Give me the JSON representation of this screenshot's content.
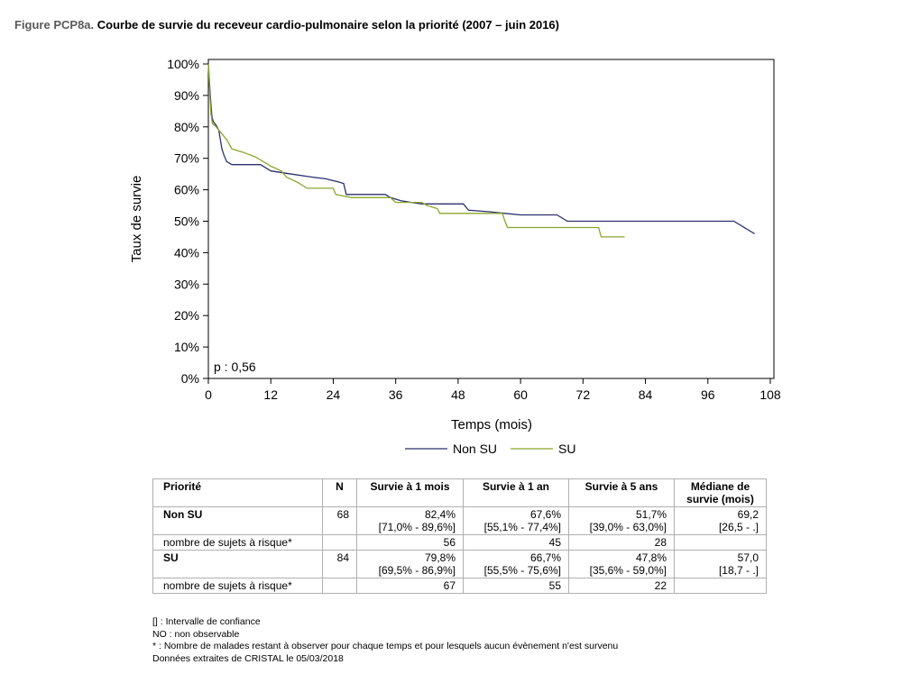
{
  "figure": {
    "label": "Figure PCP8a.",
    "title": "Courbe de survie du receveur cardio-pulmonaire selon la priorité (2007 – juin 2016)"
  },
  "chart_data": {
    "type": "line",
    "xlabel": "Temps (mois)",
    "ylabel": "Taux de survie",
    "xlim": [
      0,
      108
    ],
    "ylim": [
      0,
      100
    ],
    "x_ticks": [
      "0",
      "12",
      "24",
      "36",
      "48",
      "60",
      "72",
      "84",
      "96",
      "108"
    ],
    "y_ticks": [
      "0%",
      "10%",
      "20%",
      "30%",
      "40%",
      "50%",
      "60%",
      "70%",
      "80%",
      "90%",
      "100%"
    ],
    "annotation": "p : 0,56",
    "legend_position": "bottom",
    "series": [
      {
        "name": "Non SU",
        "color": "#2b2f6e",
        "points": [
          [
            0,
            100
          ],
          [
            0.15,
            96
          ],
          [
            0.3,
            92
          ],
          [
            0.5,
            87
          ],
          [
            0.7,
            83
          ],
          [
            1,
            81.5
          ],
          [
            1.5,
            80.5
          ],
          [
            2,
            79
          ],
          [
            2.3,
            76
          ],
          [
            2.6,
            73
          ],
          [
            3,
            71
          ],
          [
            3.5,
            69
          ],
          [
            4.5,
            68
          ],
          [
            10,
            68
          ],
          [
            11,
            67
          ],
          [
            12,
            66
          ],
          [
            16,
            65
          ],
          [
            20,
            64
          ],
          [
            22.5,
            63.5
          ],
          [
            25,
            62.5
          ],
          [
            26,
            62
          ],
          [
            26.5,
            58.5
          ],
          [
            34,
            58.5
          ],
          [
            35,
            57.5
          ],
          [
            37,
            56.5
          ],
          [
            39,
            56
          ],
          [
            41,
            55.5
          ],
          [
            43,
            55.5
          ],
          [
            49,
            55.5
          ],
          [
            50,
            53.5
          ],
          [
            54,
            53
          ],
          [
            57,
            52.5
          ],
          [
            60,
            52
          ],
          [
            67,
            52
          ],
          [
            69,
            50
          ],
          [
            101,
            50
          ],
          [
            105,
            46
          ]
        ]
      },
      {
        "name": "SU",
        "color": "#8aa62c",
        "points": [
          [
            0,
            100
          ],
          [
            0.15,
            95
          ],
          [
            0.3,
            90
          ],
          [
            0.5,
            84
          ],
          [
            0.8,
            81
          ],
          [
            1.5,
            80
          ],
          [
            2.5,
            78
          ],
          [
            3.5,
            76
          ],
          [
            4.5,
            73
          ],
          [
            6.5,
            72
          ],
          [
            9,
            70.5
          ],
          [
            10.5,
            69
          ],
          [
            12,
            67.5
          ],
          [
            14,
            66
          ],
          [
            15,
            64
          ],
          [
            17,
            62.5
          ],
          [
            19,
            60.5
          ],
          [
            24,
            60.5
          ],
          [
            24.5,
            58.5
          ],
          [
            26,
            58
          ],
          [
            27.5,
            57.5
          ],
          [
            35,
            57.5
          ],
          [
            36,
            56
          ],
          [
            41,
            56
          ],
          [
            42,
            55
          ],
          [
            44,
            54
          ],
          [
            44.5,
            52.5
          ],
          [
            56.5,
            52.5
          ],
          [
            57,
            50
          ],
          [
            57.5,
            48
          ],
          [
            75,
            48
          ],
          [
            75.5,
            45
          ],
          [
            80,
            45
          ]
        ]
      }
    ]
  },
  "table": {
    "headers": [
      "Priorité",
      "N",
      "Survie à 1 mois",
      "Survie à 1 an",
      "Survie à 5 ans",
      "Médiane de survie (mois)"
    ],
    "header_median_line1": "Médiane de",
    "header_median_line2": "survie (mois)",
    "rows": [
      {
        "priority": "Non SU",
        "n": "68",
        "m1": "82,4%",
        "m1_ci": "[71,0% - 89,6%]",
        "y1": "67,6%",
        "y1_ci": "[55,1% - 77,4%]",
        "y5": "51,7%",
        "y5_ci": "[39,0% - 63,0%]",
        "median": "69,2",
        "median_ci": "[26,5 - .]",
        "risk_label": "nombre de sujets à risque*",
        "risk_m1": "56",
        "risk_y1": "45",
        "risk_y5": "28"
      },
      {
        "priority": "SU",
        "n": "84",
        "m1": "79,8%",
        "m1_ci": "[69,5% - 86,9%]",
        "y1": "66,7%",
        "y1_ci": "[55,5% - 75,6%]",
        "y5": "47,8%",
        "y5_ci": "[35,6% - 59,0%]",
        "median": "57,0",
        "median_ci": "[18,7 - .]",
        "risk_label": "nombre de sujets à risque*",
        "risk_m1": "67",
        "risk_y1": "55",
        "risk_y5": "22"
      }
    ]
  },
  "notes": [
    "[] : Intervalle de confiance",
    "NO : non observable",
    "* : Nombre de malades restant à observer pour chaque temps et pour lesquels aucun évènement n'est survenu",
    "Données extraites de CRISTAL le 05/03/2018"
  ]
}
